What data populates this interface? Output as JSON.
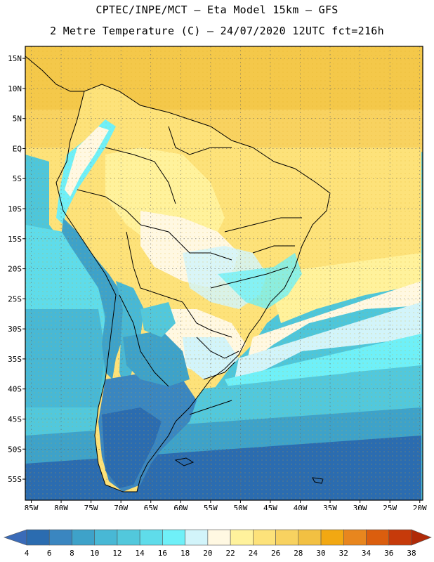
{
  "header": {
    "line1": "CPTEC/INPE/MCT –  Eta Model 15km – GFS",
    "line2": "2 Metre Temperature (C) – 24/07/2020 12UTC fct=216h"
  },
  "axes": {
    "lat_labels": [
      "15N",
      "10N",
      "5N",
      "EQ",
      "5S",
      "10S",
      "15S",
      "20S",
      "25S",
      "30S",
      "35S",
      "40S",
      "45S",
      "50S",
      "55S"
    ],
    "lat_values": [
      15,
      10,
      5,
      0,
      -5,
      -10,
      -15,
      -20,
      -25,
      -30,
      -35,
      -40,
      -45,
      -50,
      -55
    ],
    "lon_labels": [
      "85W",
      "80W",
      "75W",
      "70W",
      "65W",
      "60W",
      "55W",
      "50W",
      "45W",
      "40W",
      "35W",
      "30W",
      "25W",
      "20W"
    ],
    "lon_values": [
      -85,
      -80,
      -75,
      -70,
      -65,
      -60,
      -55,
      -50,
      -45,
      -40,
      -35,
      -30,
      -25,
      -20
    ],
    "lon_range": [
      -86,
      -19.5
    ],
    "lat_range": [
      -58.5,
      17
    ],
    "grid": true
  },
  "colorbar": {
    "labels": [
      "4",
      "6",
      "8",
      "10",
      "12",
      "14",
      "16",
      "18",
      "20",
      "22",
      "24",
      "26",
      "28",
      "30",
      "32",
      "34",
      "36",
      "38"
    ],
    "colors": [
      "#3a6bb8",
      "#2b6cb0",
      "#3a86c0",
      "#3ea2c9",
      "#48b8d5",
      "#52c8dc",
      "#5fdcea",
      "#6ff0f8",
      "#d2f4fa",
      "#fff8e2",
      "#fff29c",
      "#fde27a",
      "#f8d260",
      "#f2c042",
      "#f2a812",
      "#e8861e",
      "#db5e0e",
      "#c63a0a",
      "#b02a08"
    ]
  }
}
